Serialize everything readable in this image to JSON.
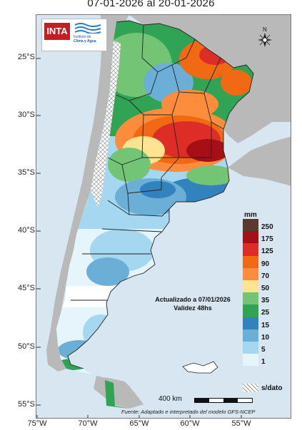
{
  "title": "07-01-2026 al 20-01-2026",
  "lat_labels": [
    "25°S",
    "30°S",
    "35°S",
    "40°S",
    "45°S",
    "50°S",
    "55°S"
  ],
  "lon_labels": [
    "75°W",
    "70°W",
    "65°W",
    "60°W",
    "55°W"
  ],
  "legend": {
    "unit": "mm",
    "classes": [
      {
        "label": "250",
        "color": "#5a3a2e"
      },
      {
        "label": "175",
        "color": "#a50f15"
      },
      {
        "label": "125",
        "color": "#de2d26"
      },
      {
        "label": "90",
        "color": "#f16913"
      },
      {
        "label": "70",
        "color": "#fd8d3c"
      },
      {
        "label": "50",
        "color": "#fee391"
      },
      {
        "label": "35",
        "color": "#74c476"
      },
      {
        "label": "25",
        "color": "#31a354"
      },
      {
        "label": "15",
        "color": "#3182bd"
      },
      {
        "label": "10",
        "color": "#6baed6"
      },
      {
        "label": "5",
        "color": "#a6d7f0"
      },
      {
        "label": "1",
        "color": "#e6f5fb"
      }
    ],
    "nodata_label": "s/dato"
  },
  "logo": {
    "inta": "INTA",
    "line1": "Instituto de",
    "line2": "Clima y Agua"
  },
  "updated_line1": "Actualizado a 07/01/2026",
  "updated_line2": "Validez 48hs",
  "scale_label": "400 km",
  "source": "Fuente: Adaptado e interpretado del modelo GFS-NCEP",
  "compass_label": "N"
}
